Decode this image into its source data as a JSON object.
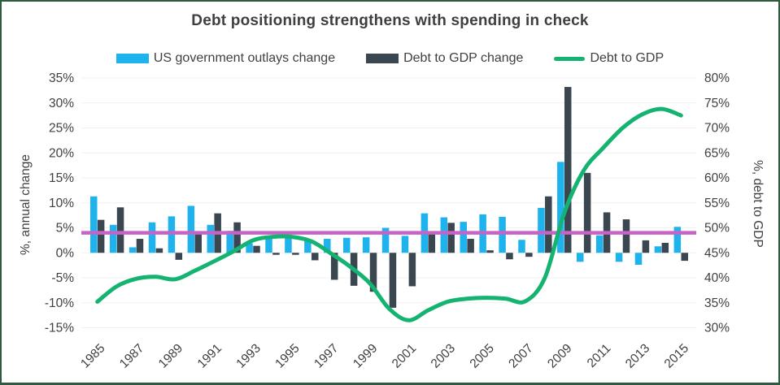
{
  "window": {
    "border_color": "#2f5a40",
    "background": "#ffffff",
    "text_color": "#404040",
    "gridline_color": "#f1f1f1"
  },
  "chart_data": {
    "type": "bar",
    "subtype": "combo-bar-line-dual-axis",
    "title": "Debt positioning strengthens with spending in check",
    "years": [
      1985,
      1986,
      1987,
      1988,
      1989,
      1990,
      1991,
      1992,
      1993,
      1994,
      1995,
      1996,
      1997,
      1998,
      1999,
      2000,
      2001,
      2002,
      2003,
      2004,
      2005,
      2006,
      2007,
      2008,
      2009,
      2010,
      2011,
      2012,
      2013,
      2014,
      2015
    ],
    "x_tick_labels": [
      "1985",
      "1987",
      "1989",
      "1991",
      "1993",
      "1995",
      "1997",
      "1999",
      "2001",
      "2003",
      "2005",
      "2007",
      "2009",
      "2011",
      "2013",
      "2015"
    ],
    "series": [
      {
        "name": "US government outlays change",
        "type": "bar",
        "axis": "left",
        "color": "#1fb3ee",
        "values": [
          11.3,
          5.6,
          1.1,
          6.1,
          7.3,
          9.4,
          5.6,
          4.4,
          1.9,
          3.4,
          3.4,
          2.5,
          2.8,
          3.0,
          3.1,
          5.0,
          3.4,
          7.9,
          7.1,
          6.2,
          7.7,
          7.2,
          2.6,
          9.0,
          18.2,
          -1.8,
          3.5,
          -1.8,
          -2.4,
          1.3,
          5.2
        ]
      },
      {
        "name": "Debt to GDP change",
        "type": "bar",
        "axis": "left",
        "color": "#3b4750",
        "values": [
          6.6,
          9.1,
          2.8,
          0.9,
          -1.4,
          4.1,
          7.9,
          6.1,
          1.4,
          -0.4,
          -0.4,
          -1.5,
          -5.4,
          -6.6,
          -7.8,
          -11.0,
          -6.7,
          3.8,
          6.0,
          2.8,
          0.5,
          -1.3,
          -0.8,
          11.3,
          33.2,
          16.0,
          8.1,
          6.7,
          2.5,
          2.0,
          -1.6
        ]
      },
      {
        "name": "Debt to GDP",
        "type": "line",
        "axis": "right",
        "color": "#14b371",
        "values": [
          35.2,
          38.3,
          39.8,
          40.2,
          39.7,
          41.4,
          43.3,
          45.3,
          47.5,
          48.2,
          48.2,
          47.3,
          44.9,
          42.2,
          38.9,
          33.8,
          31.5,
          33.5,
          35.2,
          35.8,
          36.0,
          35.8,
          35.3,
          40.0,
          53.0,
          61.5,
          66.0,
          70.0,
          72.7,
          73.8,
          72.5
        ]
      }
    ],
    "reference_line": {
      "value": 4.0,
      "axis": "left",
      "color": "#c763c7"
    },
    "left_axis": {
      "label": "%, annual change",
      "min": -15,
      "max": 35,
      "step": 5,
      "tick_labels": [
        "35%",
        "30%",
        "25%",
        "20%",
        "15%",
        "10%",
        "5%",
        "0%",
        "-5%",
        "-10%",
        "-15%"
      ]
    },
    "right_axis": {
      "label": "%, debt to GDP",
      "min": 30,
      "max": 80,
      "step": 5,
      "tick_labels": [
        "80%",
        "75%",
        "70%",
        "65%",
        "60%",
        "55%",
        "50%",
        "45%",
        "40%",
        "35%",
        "30%"
      ]
    },
    "grid": true,
    "legend_position": "top"
  }
}
